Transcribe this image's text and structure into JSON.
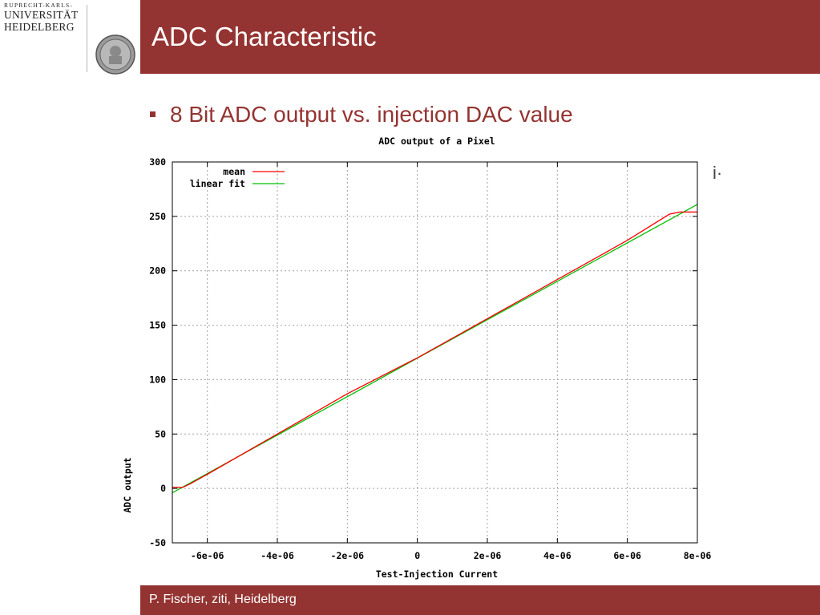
{
  "logo": {
    "line1": "RUPRECHT-KARLS-",
    "line2": "UNIVERSITÄT",
    "line3": "HEIDELBERG"
  },
  "slide": {
    "title": "ADC Characteristic",
    "bullet": "8 Bit ADC output vs. injection DAC value",
    "stray_glyph": "i·",
    "footer": "P. Fischer, ziti, Heidelberg"
  },
  "colors": {
    "brand": "#943432",
    "mean": "#ff0000",
    "fit": "#00c000"
  },
  "chart_data": {
    "type": "line",
    "title": "ADC output of a Pixel",
    "xlabel": "Test-Injection Current",
    "ylabel": "ADC output",
    "xlim": [
      -7e-06,
      8e-06
    ],
    "ylim": [
      -50,
      300
    ],
    "x_ticks": [
      -6e-06,
      -4e-06,
      -2e-06,
      0,
      2e-06,
      4e-06,
      6e-06,
      8e-06
    ],
    "x_tick_labels": [
      "-6e-06",
      "-4e-06",
      "-2e-06",
      "0",
      "2e-06",
      "4e-06",
      "6e-06",
      "8e-06"
    ],
    "y_ticks": [
      -50,
      0,
      50,
      100,
      150,
      200,
      250,
      300
    ],
    "y_tick_labels": [
      "-50",
      "0",
      "50",
      "100",
      "150",
      "200",
      "250",
      "300"
    ],
    "grid": true,
    "legend_position": "top-left",
    "series": [
      {
        "name": "mean",
        "color": "#ff0000",
        "x": [
          -7e-06,
          -6.7e-06,
          -6.5e-06,
          -6e-06,
          -4e-06,
          -2e-06,
          0,
          2e-06,
          4e-06,
          6e-06,
          7.2e-06,
          7.5e-06,
          8e-06
        ],
        "y": [
          1,
          1,
          4,
          13,
          50,
          87,
          120,
          156,
          192,
          228,
          252,
          254,
          254
        ]
      },
      {
        "name": "linear fit",
        "color": "#00c000",
        "x": [
          -7e-06,
          8e-06
        ],
        "y": [
          -4,
          261
        ]
      }
    ]
  }
}
